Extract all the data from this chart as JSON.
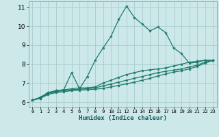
{
  "xlabel": "Humidex (Indice chaleur)",
  "bg_color": "#cce8e8",
  "grid_color": "#aacccc",
  "line_color": "#1a7a6a",
  "spine_color": "#6aaaaa",
  "xlim": [
    -0.5,
    23.5
  ],
  "ylim": [
    5.75,
    11.3
  ],
  "xticks": [
    0,
    1,
    2,
    3,
    4,
    5,
    6,
    7,
    8,
    9,
    10,
    11,
    12,
    13,
    14,
    15,
    16,
    17,
    18,
    19,
    20,
    21,
    22,
    23
  ],
  "yticks": [
    6,
    7,
    8,
    9,
    10,
    11
  ],
  "series": [
    {
      "x": [
        0,
        1,
        2,
        3,
        4,
        5,
        6,
        7,
        8,
        9,
        10,
        11,
        12,
        13,
        14,
        15,
        16,
        17,
        18,
        19,
        20,
        21,
        22,
        23
      ],
      "y": [
        6.1,
        6.25,
        6.5,
        6.6,
        6.65,
        7.55,
        6.7,
        7.35,
        8.2,
        8.85,
        9.45,
        10.35,
        11.05,
        10.45,
        10.1,
        9.75,
        9.95,
        9.65,
        8.85,
        8.55,
        8.05,
        8.1,
        8.2,
        8.2
      ]
    },
    {
      "x": [
        0,
        1,
        2,
        3,
        4,
        5,
        6,
        7,
        8,
        9,
        10,
        11,
        12,
        13,
        14,
        15,
        16,
        17,
        18,
        19,
        20,
        21,
        22,
        23
      ],
      "y": [
        6.1,
        6.25,
        6.5,
        6.6,
        6.65,
        6.7,
        6.75,
        6.75,
        6.8,
        7.0,
        7.15,
        7.3,
        7.45,
        7.55,
        7.65,
        7.7,
        7.75,
        7.8,
        7.9,
        8.0,
        8.1,
        8.15,
        8.2,
        8.2
      ]
    },
    {
      "x": [
        0,
        1,
        2,
        3,
        4,
        5,
        6,
        7,
        8,
        9,
        10,
        11,
        12,
        13,
        14,
        15,
        16,
        17,
        18,
        19,
        20,
        21,
        22,
        23
      ],
      "y": [
        6.1,
        6.2,
        6.45,
        6.55,
        6.6,
        6.65,
        6.68,
        6.7,
        6.75,
        6.85,
        6.95,
        7.05,
        7.15,
        7.25,
        7.35,
        7.45,
        7.55,
        7.62,
        7.68,
        7.75,
        7.85,
        7.95,
        8.1,
        8.2
      ]
    },
    {
      "x": [
        0,
        1,
        2,
        3,
        4,
        5,
        6,
        7,
        8,
        9,
        10,
        11,
        12,
        13,
        14,
        15,
        16,
        17,
        18,
        19,
        20,
        21,
        22,
        23
      ],
      "y": [
        6.1,
        6.2,
        6.4,
        6.5,
        6.55,
        6.6,
        6.63,
        6.65,
        6.68,
        6.72,
        6.8,
        6.88,
        6.96,
        7.05,
        7.15,
        7.25,
        7.38,
        7.48,
        7.58,
        7.65,
        7.75,
        7.88,
        8.05,
        8.2
      ]
    }
  ]
}
